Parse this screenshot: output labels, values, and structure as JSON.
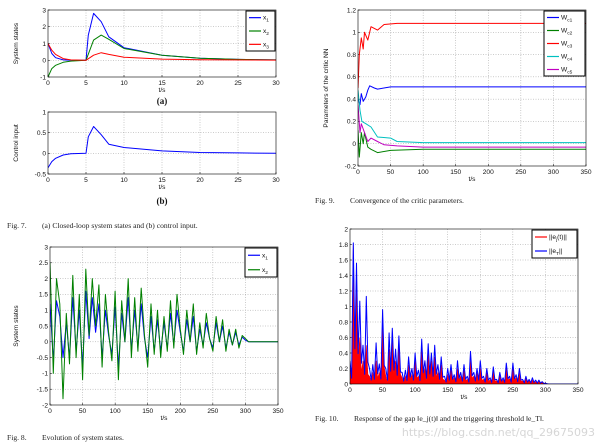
{
  "figures": {
    "fig7": {
      "sub_a": "(a)",
      "sub_b": "(b)",
      "caption_num": "Fig. 7.",
      "caption": "(a) Closed-loop system states and (b) control input."
    },
    "fig8": {
      "caption_num": "Fig. 8.",
      "caption": "Evolution of system states."
    },
    "fig9": {
      "caption_num": "Fig. 9.",
      "caption": "Convergence of the critic parameters."
    },
    "fig10": {
      "caption_num": "Fig. 10.",
      "caption": "Response of the gap ‖e_j(t)‖ and the triggering threshold ‖e_T‖."
    }
  },
  "watermark": "https://blog.csdn.net/qq_29675093",
  "chart_data": [
    {
      "id": "fig7a",
      "type": "line",
      "xlabel": "t/s",
      "ylabel": "System states",
      "xlim": [
        0,
        30
      ],
      "ylim": [
        -1,
        3
      ],
      "xticks": [
        0,
        5,
        10,
        15,
        20,
        25,
        30
      ],
      "yticks": [
        -1,
        0,
        1,
        2,
        3
      ],
      "grid": true,
      "legend": "top-right",
      "series": [
        {
          "name": "x1",
          "label": "x",
          "sub": "1",
          "color": "#0000ff",
          "x": [
            0,
            0.5,
            1,
            2,
            3,
            5,
            5.3,
            6,
            7,
            8,
            10,
            15,
            20,
            25,
            30
          ],
          "y": [
            1,
            0.4,
            0.15,
            0.02,
            0,
            0,
            1.5,
            2.8,
            2.3,
            1.4,
            0.75,
            0.3,
            0.12,
            0.05,
            0.02
          ]
        },
        {
          "name": "x2",
          "label": "x",
          "sub": "2",
          "color": "#008000",
          "x": [
            0,
            0.5,
            1,
            2,
            3,
            5,
            6,
            7,
            8,
            10,
            15,
            20,
            25,
            30
          ],
          "y": [
            -1,
            -0.5,
            -0.3,
            -0.12,
            -0.05,
            0,
            1.2,
            1.5,
            1.25,
            0.7,
            0.3,
            0.12,
            0.05,
            0.02
          ]
        },
        {
          "name": "x3",
          "label": "x",
          "sub": "3",
          "color": "#ff0000",
          "x": [
            0,
            0.5,
            1,
            2,
            3,
            5,
            6,
            7,
            8,
            10,
            15,
            20,
            30
          ],
          "y": [
            1,
            0.6,
            0.35,
            0.1,
            0.02,
            0,
            0.3,
            0.45,
            0.35,
            0.18,
            0.07,
            0.03,
            0.01
          ]
        }
      ]
    },
    {
      "id": "fig7b",
      "type": "line",
      "xlabel": "t/s",
      "ylabel": "Control input",
      "xlim": [
        0,
        30
      ],
      "ylim": [
        -0.5,
        1
      ],
      "xticks": [
        0,
        5,
        10,
        15,
        20,
        25,
        30
      ],
      "yticks": [
        -0.5,
        0,
        0.5,
        1
      ],
      "grid": true,
      "series": [
        {
          "color": "#0000ff",
          "x": [
            0,
            0.5,
            1,
            2,
            3,
            5,
            5.3,
            6,
            7,
            8,
            10,
            15,
            20,
            25,
            30
          ],
          "y": [
            -0.35,
            -0.2,
            -0.12,
            -0.04,
            -0.01,
            0,
            0.4,
            0.65,
            0.45,
            0.22,
            0.14,
            0.06,
            0.02,
            0.01,
            0
          ]
        }
      ]
    },
    {
      "id": "fig8",
      "type": "line",
      "xlabel": "t/s",
      "ylabel": "System states",
      "xlim": [
        0,
        350
      ],
      "ylim": [
        -2,
        3
      ],
      "xticks": [
        0,
        50,
        100,
        150,
        200,
        250,
        300,
        350
      ],
      "yticks": [
        -2,
        -1.5,
        -1,
        -0.5,
        0,
        0.5,
        1,
        1.5,
        2,
        2.5,
        3
      ],
      "grid": true,
      "legend": "top-right",
      "x_step": 5,
      "series": [
        {
          "name": "x1",
          "label": "x",
          "sub": "1",
          "color": "#0000ff",
          "y": [
            1.2,
            -0.6,
            1.3,
            0.8,
            -0.5,
            0.6,
            -0.5,
            1.4,
            -0.3,
            1.0,
            -0.8,
            1.6,
            0.1,
            1.4,
            0.3,
            1.2,
            -0.5,
            1.0,
            0.2,
            -0.4,
            1.1,
            -0.8,
            0.9,
            0,
            1.4,
            -0.3,
            1.0,
            -0.2,
            1.2,
            0.1,
            -0.5,
            0.8,
            -0.3,
            0.7,
            -0.3,
            0.6,
            -0.2,
            0.9,
            -0.1,
            1.0,
            0.3,
            -0.3,
            0.7,
            0,
            0.8,
            -0.3,
            0.4,
            -0.1,
            0.6,
            0.1,
            -0.2,
            0.6,
            0,
            0.5,
            -0.2,
            0.3,
            -0.1,
            0.3,
            -0.1,
            0.15,
            0.05,
            0,
            0,
            0,
            0,
            0,
            0,
            0,
            0,
            0,
            0
          ]
        },
        {
          "name": "x2",
          "label": "x",
          "sub": "2",
          "color": "#008000",
          "y": [
            2.5,
            -1.0,
            2.0,
            1.2,
            -1.8,
            0.9,
            -0.7,
            2.1,
            -0.5,
            1.5,
            -1.2,
            2.3,
            0.2,
            2.0,
            0.5,
            1.8,
            -0.8,
            1.5,
            0.3,
            -0.6,
            1.6,
            -1.2,
            1.3,
            0,
            2.0,
            -0.5,
            1.4,
            -0.3,
            1.7,
            0.2,
            -0.8,
            1.2,
            -0.4,
            1.0,
            -0.5,
            0.8,
            -0.3,
            1.3,
            -0.2,
            1.5,
            0.4,
            -0.4,
            1.0,
            0,
            1.2,
            -0.4,
            0.6,
            -0.2,
            0.9,
            0.1,
            -0.3,
            0.8,
            0,
            0.7,
            -0.3,
            0.4,
            -0.1,
            0.4,
            -0.2,
            0.2,
            0.1,
            0,
            0,
            0,
            0,
            0,
            0,
            0,
            0,
            0,
            0
          ]
        }
      ]
    },
    {
      "id": "fig9",
      "type": "line",
      "xlabel": "t/s",
      "ylabel": "Parameters of the critic NN",
      "xlim": [
        0,
        350
      ],
      "ylim": [
        -0.2,
        1.2
      ],
      "xticks": [
        0,
        50,
        100,
        150,
        200,
        250,
        300,
        350
      ],
      "yticks": [
        -0.2,
        0,
        0.2,
        0.4,
        0.6,
        0.8,
        1,
        1.2
      ],
      "grid": true,
      "legend": "top-right",
      "series": [
        {
          "name": "Wc1",
          "label": "W",
          "sub": "c1",
          "color": "#0000ff",
          "x": [
            0,
            3,
            5,
            8,
            12,
            15,
            18,
            25,
            30,
            50,
            100,
            350
          ],
          "y": [
            0.4,
            0.35,
            0.45,
            0.38,
            0.42,
            0.48,
            0.52,
            0.5,
            0.49,
            0.51,
            0.51,
            0.51
          ]
        },
        {
          "name": "Wc2",
          "label": "W",
          "sub": "c2",
          "color": "#008000",
          "x": [
            0,
            2,
            5,
            8,
            10,
            15,
            20,
            30,
            50,
            100,
            200,
            350
          ],
          "y": [
            0.12,
            -0.12,
            0.1,
            0,
            0.1,
            -0.03,
            -0.05,
            -0.08,
            -0.06,
            -0.05,
            -0.05,
            -0.05
          ]
        },
        {
          "name": "Wc3",
          "label": "W",
          "sub": "c3",
          "color": "#ff0000",
          "x": [
            0,
            2,
            5,
            8,
            10,
            15,
            20,
            30,
            40,
            60,
            350
          ],
          "y": [
            0.5,
            0.8,
            0.95,
            0.85,
            1.0,
            0.93,
            1.05,
            1.02,
            1.07,
            1.08,
            1.08
          ]
        },
        {
          "name": "Wc4",
          "label": "W",
          "sub": "c4",
          "color": "#00c0c0",
          "x": [
            0,
            3,
            6,
            12,
            20,
            30,
            50,
            60,
            100,
            350
          ],
          "y": [
            0.48,
            0.3,
            0.2,
            0.18,
            0.15,
            0.06,
            0.05,
            0.02,
            0.01,
            0.01
          ]
        },
        {
          "name": "Wc5",
          "label": "W",
          "sub": "c5",
          "color": "#c000c0",
          "x": [
            0,
            3,
            5,
            10,
            15,
            20,
            30,
            40,
            60,
            100,
            200,
            350
          ],
          "y": [
            0.35,
            0.1,
            0.18,
            0.1,
            0.02,
            0.05,
            0.02,
            -0.01,
            -0.02,
            -0.03,
            -0.03,
            -0.03
          ]
        }
      ]
    },
    {
      "id": "fig10",
      "type": "area",
      "xlabel": "t/s",
      "ylabel": "",
      "xlim": [
        0,
        350
      ],
      "ylim": [
        0,
        2
      ],
      "xticks": [
        0,
        50,
        100,
        150,
        200,
        250,
        300,
        350
      ],
      "yticks": [
        0,
        0.2,
        0.4,
        0.6,
        0.8,
        1,
        1.2,
        1.4,
        1.6,
        1.8,
        2
      ],
      "grid": true,
      "legend": "top-right",
      "x_step": 5,
      "series": [
        {
          "name": "||ej(t)||",
          "label": "||e",
          "sub": "j",
          "tail": "(t)||",
          "color": "#ff0000",
          "fill": true,
          "y": [
            0.2,
            1.8,
            1.2,
            0.6,
            0.3,
            0.5,
            0.1,
            0.15,
            0.3,
            0.15,
            0.9,
            0.1,
            0.45,
            0.55,
            0.3,
            0.5,
            0.08,
            0.1,
            0.25,
            0.12,
            0.3,
            0.1,
            0.45,
            0.2,
            0.4,
            0.3,
            0.35,
            0.15,
            0.25,
            0.05,
            0.12,
            0.18,
            0.08,
            0.2,
            0.1,
            0.18,
            0.06,
            0.3,
            0.1,
            0.14,
            0.2,
            0.06,
            0.14,
            0.05,
            0.16,
            0.04,
            0.1,
            0.05,
            0.2,
            0.07,
            0.2,
            0.08,
            0.14,
            0.04,
            0.07,
            0.04,
            0.05,
            0.03,
            0.03,
            0.02,
            0.01,
            0,
            0,
            0,
            0,
            0,
            0,
            0,
            0,
            0,
            0
          ]
        },
        {
          "name": "||eT||",
          "label": "||e",
          "sub": "T",
          "tail": "||",
          "color": "#0000ff",
          "y": [
            0.3,
            1.82,
            1.56,
            1.07,
            0.5,
            1.13,
            0.2,
            0.25,
            0.53,
            0.26,
            0.96,
            0.2,
            0.66,
            0.72,
            0.45,
            0.62,
            0.15,
            0.18,
            0.35,
            0.2,
            0.4,
            0.18,
            0.58,
            0.3,
            0.52,
            0.4,
            0.5,
            0.25,
            0.35,
            0.1,
            0.2,
            0.25,
            0.12,
            0.3,
            0.15,
            0.25,
            0.1,
            0.42,
            0.15,
            0.2,
            0.3,
            0.1,
            0.2,
            0.08,
            0.22,
            0.06,
            0.15,
            0.08,
            0.27,
            0.1,
            0.27,
            0.12,
            0.2,
            0.06,
            0.1,
            0.06,
            0.08,
            0.05,
            0.05,
            0.03,
            0.01,
            0,
            0,
            0,
            0,
            0,
            0,
            0,
            0,
            0,
            0
          ]
        }
      ]
    }
  ]
}
